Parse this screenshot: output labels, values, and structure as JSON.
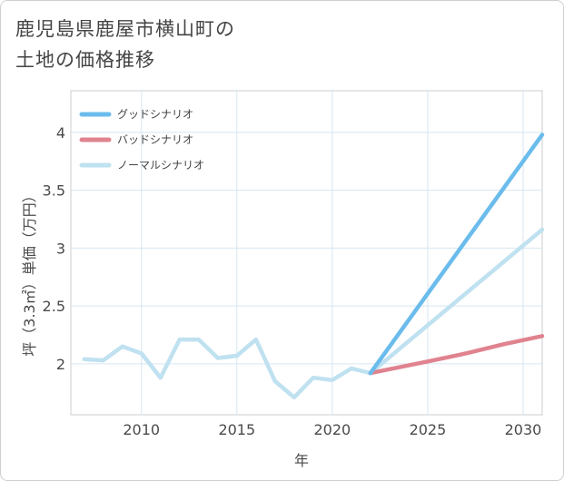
{
  "title_lines": [
    "鹿児島県鹿屋市横山町の",
    "土地の価格推移"
  ],
  "chart_data": {
    "type": "line",
    "xlabel": "年",
    "ylabel": "坪（3.3㎡）単価（万円）",
    "xlim": [
      2006.3,
      2031
    ],
    "ylim": [
      1.56,
      4.36
    ],
    "x_ticks": [
      2010,
      2015,
      2020,
      2025,
      2030
    ],
    "y_ticks": [
      2,
      2.5,
      3,
      3.5,
      4
    ],
    "y_tick_labels": [
      "2",
      "2.5",
      "3",
      "3.5",
      "4"
    ],
    "legend_position": "top-left",
    "grid": true,
    "series": [
      {
        "name": "グッドシナリオ",
        "color": "#6bbcec",
        "x": [
          2022,
          2031
        ],
        "y": [
          1.92,
          3.98
        ]
      },
      {
        "name": "バッドシナリオ",
        "color": "#e0838f",
        "x": [
          2022,
          2025,
          2027,
          2029,
          2031
        ],
        "y": [
          1.92,
          2.02,
          2.09,
          2.17,
          2.24
        ]
      },
      {
        "name": "ノーマルシナリオ",
        "color": "#bfe1f0",
        "x": [
          2007,
          2008,
          2009,
          2010,
          2011,
          2012,
          2013,
          2014,
          2015,
          2016,
          2017,
          2018,
          2019,
          2020,
          2021,
          2022,
          2031
        ],
        "y": [
          2.04,
          2.03,
          2.15,
          2.09,
          1.88,
          2.21,
          2.21,
          2.05,
          2.07,
          2.21,
          1.85,
          1.71,
          1.88,
          1.86,
          1.96,
          1.92,
          3.16
        ]
      }
    ]
  }
}
